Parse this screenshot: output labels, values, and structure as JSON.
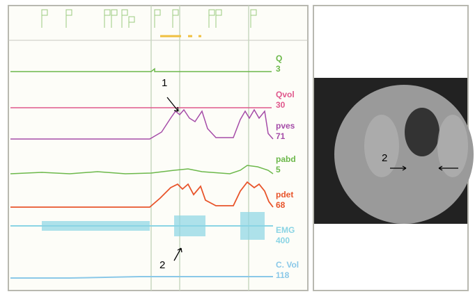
{
  "channels": [
    {
      "name": "Q",
      "value": 3,
      "color": "#6cb84a"
    },
    {
      "name": "Qvol",
      "value": 30,
      "color": "#e0588c"
    },
    {
      "name": "pves",
      "value": 71,
      "color": "#a54ca8"
    },
    {
      "name": "pabd",
      "value": 5,
      "color": "#6cb84a"
    },
    {
      "name": "pdet",
      "value": 68,
      "color": "#e8542a"
    },
    {
      "name": "EMG",
      "value": 400,
      "color": "#8ad4e4"
    },
    {
      "name": "C. Vol",
      "value": 118,
      "color": "#8ac8e8"
    }
  ],
  "annotations": [
    "1",
    "2",
    "2"
  ]
}
